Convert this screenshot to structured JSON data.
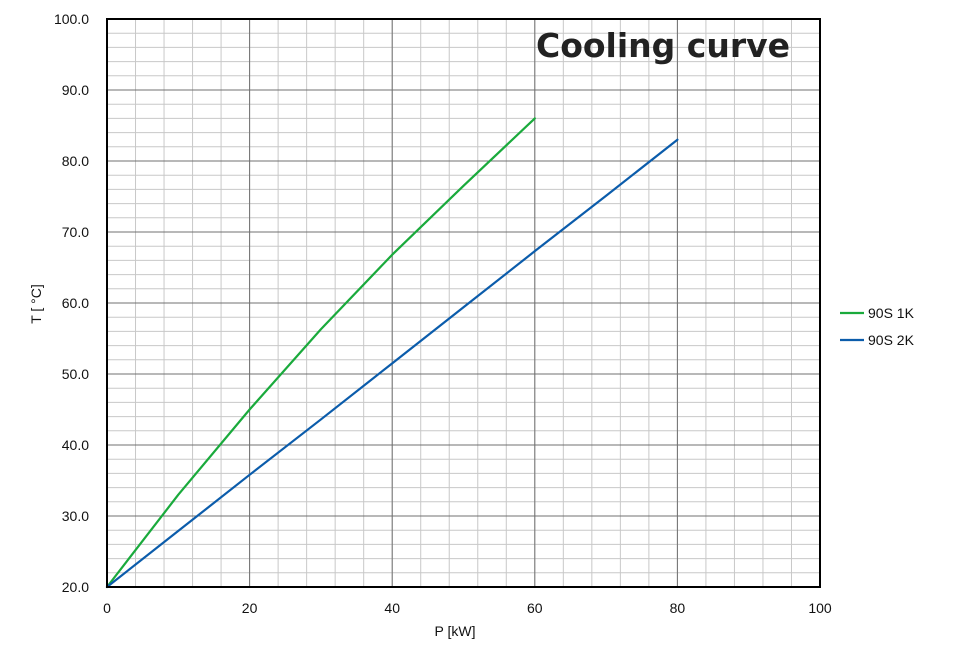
{
  "chart_data": {
    "type": "line",
    "title": "Cooling curve",
    "xlabel": "P [kW]",
    "ylabel": "T [ °C]",
    "xlim": [
      0,
      100
    ],
    "ylim": [
      20,
      100
    ],
    "x_ticks": [
      0,
      20,
      40,
      60,
      80,
      100
    ],
    "x_tick_labels": [
      "0",
      "20",
      "40",
      "60",
      "80",
      "100"
    ],
    "y_ticks": [
      20,
      30,
      40,
      50,
      60,
      70,
      80,
      90,
      100
    ],
    "y_tick_labels": [
      "20.0",
      "30.0",
      "40.0",
      "50.0",
      "60.0",
      "70.0",
      "80.0",
      "90.0",
      "100.0"
    ],
    "grid": true,
    "legend_position": "right",
    "series": [
      {
        "name": "90S 1K",
        "color": "#1aaa3c",
        "x": [
          0,
          10,
          20,
          30,
          40,
          50,
          60
        ],
        "y": [
          20,
          33,
          45,
          56.3,
          66.8,
          76.5,
          86
        ]
      },
      {
        "name": "90S 2K",
        "color": "#0b5cab",
        "x": [
          0,
          10,
          20,
          30,
          40,
          50,
          60,
          70,
          80
        ],
        "y": [
          20,
          27.9,
          35.8,
          43.6,
          51.5,
          59.4,
          67.3,
          75.1,
          83
        ]
      }
    ]
  }
}
